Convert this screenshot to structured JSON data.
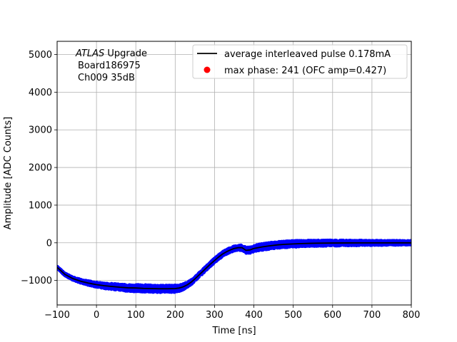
{
  "chart_data": {
    "type": "line",
    "xlabel": "Time [ns]",
    "ylabel": "Amplitude [ADC Counts]",
    "xlim": [
      -100,
      800
    ],
    "ylim": [
      -1650,
      5350
    ],
    "xticks": [
      -100,
      0,
      100,
      200,
      300,
      400,
      500,
      600,
      700,
      800
    ],
    "yticks": [
      -1000,
      0,
      1000,
      2000,
      3000,
      4000,
      5000
    ],
    "grid": true,
    "legend_position": "top-right",
    "annotation": {
      "line1_italic": "ATLAS",
      "line1_rest": " Upgrade",
      "line2": "Board186975",
      "line3": "Ch009 35dB"
    },
    "series": [
      {
        "name": "average interleaved pulse 0.178mA",
        "kind": "line",
        "color": "#000000",
        "x": [
          -100,
          -80,
          -60,
          -40,
          -20,
          0,
          20,
          40,
          60,
          80,
          100,
          120,
          140,
          160,
          180,
          200,
          210,
          220,
          230,
          240,
          250,
          260,
          270,
          280,
          290,
          300,
          310,
          320,
          330,
          340,
          350,
          360,
          370,
          380,
          390,
          400,
          420,
          440,
          460,
          480,
          500,
          520,
          540,
          560,
          580,
          600,
          640,
          680,
          720,
          760,
          800
        ],
        "y": [
          -650,
          -840,
          -950,
          -1020,
          -1070,
          -1110,
          -1140,
          -1160,
          -1180,
          -1195,
          -1200,
          -1210,
          -1215,
          -1220,
          -1220,
          -1215,
          -1200,
          -1170,
          -1120,
          -1050,
          -960,
          -860,
          -760,
          -660,
          -560,
          -470,
          -380,
          -300,
          -240,
          -190,
          -150,
          -130,
          -130,
          -200,
          -190,
          -150,
          -110,
          -80,
          -55,
          -40,
          -30,
          -20,
          -15,
          -10,
          -8,
          -5,
          -3,
          -2,
          -1,
          0,
          0
        ]
      },
      {
        "name": "max phase: 241 (OFC amp=0.427)",
        "kind": "scatter",
        "color": "#0000ff",
        "legend_color": "#ff0000",
        "noise": [
          [
            -100,
            20
          ],
          [
            0,
            60
          ],
          [
            100,
            90
          ],
          [
            200,
            90
          ],
          [
            250,
            50
          ],
          [
            350,
            60
          ],
          [
            400,
            80
          ],
          [
            500,
            80
          ],
          [
            600,
            70
          ],
          [
            700,
            60
          ],
          [
            800,
            50
          ]
        ]
      }
    ]
  }
}
